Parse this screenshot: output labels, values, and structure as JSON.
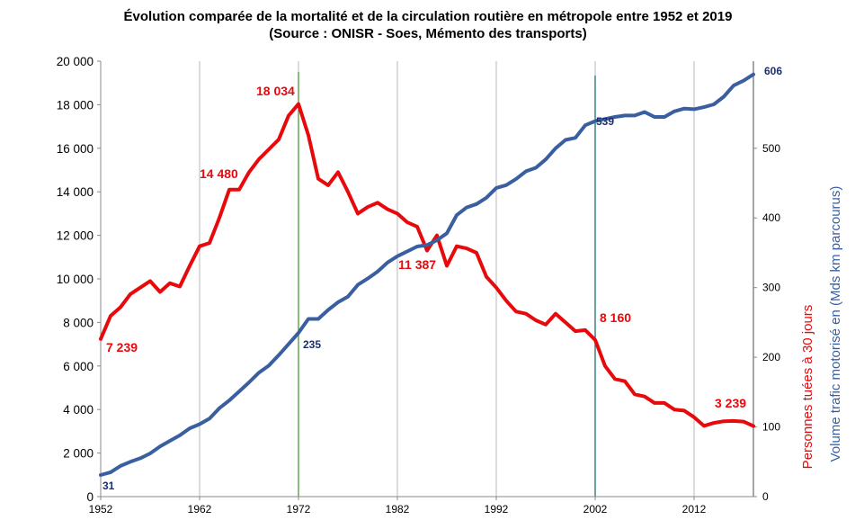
{
  "chart_data": {
    "type": "line",
    "title": "Évolution comparée de la mortalité et de la circulation routière en métropole entre 1952 et 2019",
    "subtitle": "(Source : ONISR - Soes, Mémento des transports)",
    "x_ticks": [
      "1952",
      "1962",
      "1972",
      "1982",
      "1992",
      "2002",
      "2012"
    ],
    "xlim": [
      1952,
      2018
    ],
    "y_left": {
      "ylim": [
        0,
        20000
      ],
      "ticks": [
        "0",
        "2 000",
        "4 000",
        "6 000",
        "8 000",
        "10 000",
        "12 000",
        "14 000",
        "16 000",
        "18 000",
        "20 000"
      ]
    },
    "y_right": {
      "ylim": [
        0,
        625
      ],
      "ticks": [
        "0",
        "100",
        "200",
        "300",
        "400",
        "500"
      ]
    },
    "ylabel_right_red": "Personnes tuées à 30 jours",
    "ylabel_right_blue": "Volume trafic motorisé en (Mds km parcourus)",
    "colors": {
      "deaths": "#e8090c",
      "traffic": "#3a5fa0",
      "grid": "#b9b9b9",
      "marker_green": "#4a9a3a",
      "marker_teal": "#1f6e6e",
      "marker_dark": "#1c3a5c"
    },
    "series": [
      {
        "name": "Personnes tuées à 30 jours",
        "axis": "left",
        "x": [
          1952,
          1953,
          1954,
          1955,
          1956,
          1957,
          1958,
          1959,
          1960,
          1961,
          1962,
          1963,
          1964,
          1965,
          1966,
          1967,
          1968,
          1969,
          1970,
          1971,
          1972,
          1973,
          1974,
          1975,
          1976,
          1977,
          1978,
          1979,
          1980,
          1981,
          1982,
          1983,
          1984,
          1985,
          1986,
          1987,
          1988,
          1989,
          1990,
          1991,
          1992,
          1993,
          1994,
          1995,
          1996,
          1997,
          1998,
          1999,
          2000,
          2001,
          2002,
          2003,
          2004,
          2005,
          2006,
          2007,
          2008,
          2009,
          2010,
          2011,
          2012,
          2013,
          2014,
          2015,
          2016,
          2017,
          2018
        ],
        "values": [
          7239,
          8300,
          8700,
          9300,
          9600,
          9900,
          9400,
          9800,
          9650,
          10600,
          11500,
          11650,
          12800,
          14100,
          14100,
          14900,
          15500,
          15950,
          16400,
          17500,
          18034,
          16600,
          14600,
          14300,
          14900,
          14000,
          13000,
          13300,
          13500,
          13200,
          13000,
          12600,
          12400,
          11300,
          12000,
          10600,
          11500,
          11400,
          11200,
          10100,
          9600,
          9000,
          8500,
          8400,
          8100,
          7900,
          8400,
          8000,
          7600,
          7650,
          7200,
          6000,
          5400,
          5300,
          4700,
          4600,
          4300,
          4300,
          4000,
          3950,
          3650,
          3250,
          3384,
          3461,
          3477,
          3448,
          3239
        ]
      },
      {
        "name": "Volume trafic motorisé en (Mds km parcourus)",
        "axis": "right",
        "x": [
          1952,
          1953,
          1954,
          1955,
          1956,
          1957,
          1958,
          1959,
          1960,
          1961,
          1962,
          1963,
          1964,
          1965,
          1966,
          1967,
          1968,
          1969,
          1970,
          1971,
          1972,
          1973,
          1974,
          1975,
          1976,
          1977,
          1978,
          1979,
          1980,
          1981,
          1982,
          1983,
          1984,
          1985,
          1986,
          1987,
          1988,
          1989,
          1990,
          1991,
          1992,
          1993,
          1994,
          1995,
          1996,
          1997,
          1998,
          1999,
          2000,
          2001,
          2002,
          2003,
          2004,
          2005,
          2006,
          2007,
          2008,
          2009,
          2010,
          2011,
          2012,
          2013,
          2014,
          2015,
          2016,
          2017,
          2018
        ],
        "values": [
          31,
          35,
          44,
          50,
          55,
          62,
          72,
          80,
          88,
          98,
          104,
          112,
          127,
          138,
          151,
          164,
          178,
          188,
          203,
          219,
          235,
          255,
          255,
          268,
          279,
          287,
          304,
          313,
          323,
          336,
          345,
          352,
          359,
          361,
          368,
          378,
          404,
          415,
          420,
          429,
          443,
          447,
          456,
          467,
          472,
          484,
          500,
          512,
          515,
          533,
          539,
          542,
          545,
          547,
          547,
          552,
          545,
          545,
          553,
          557,
          556,
          559,
          563,
          574,
          590,
          597,
          606
        ]
      }
    ],
    "annotations": [
      {
        "text": "7 239",
        "series": "deaths"
      },
      {
        "text": "14 480",
        "series": "deaths"
      },
      {
        "text": "18 034",
        "series": "deaths"
      },
      {
        "text": "11 387",
        "series": "deaths"
      },
      {
        "text": "8 160",
        "series": "deaths"
      },
      {
        "text": "3 239",
        "series": "deaths"
      },
      {
        "text": "31",
        "series": "traffic"
      },
      {
        "text": "235",
        "series": "traffic"
      },
      {
        "text": "539",
        "series": "traffic"
      },
      {
        "text": "606",
        "series": "traffic"
      }
    ],
    "grid": true,
    "legend": "none"
  }
}
